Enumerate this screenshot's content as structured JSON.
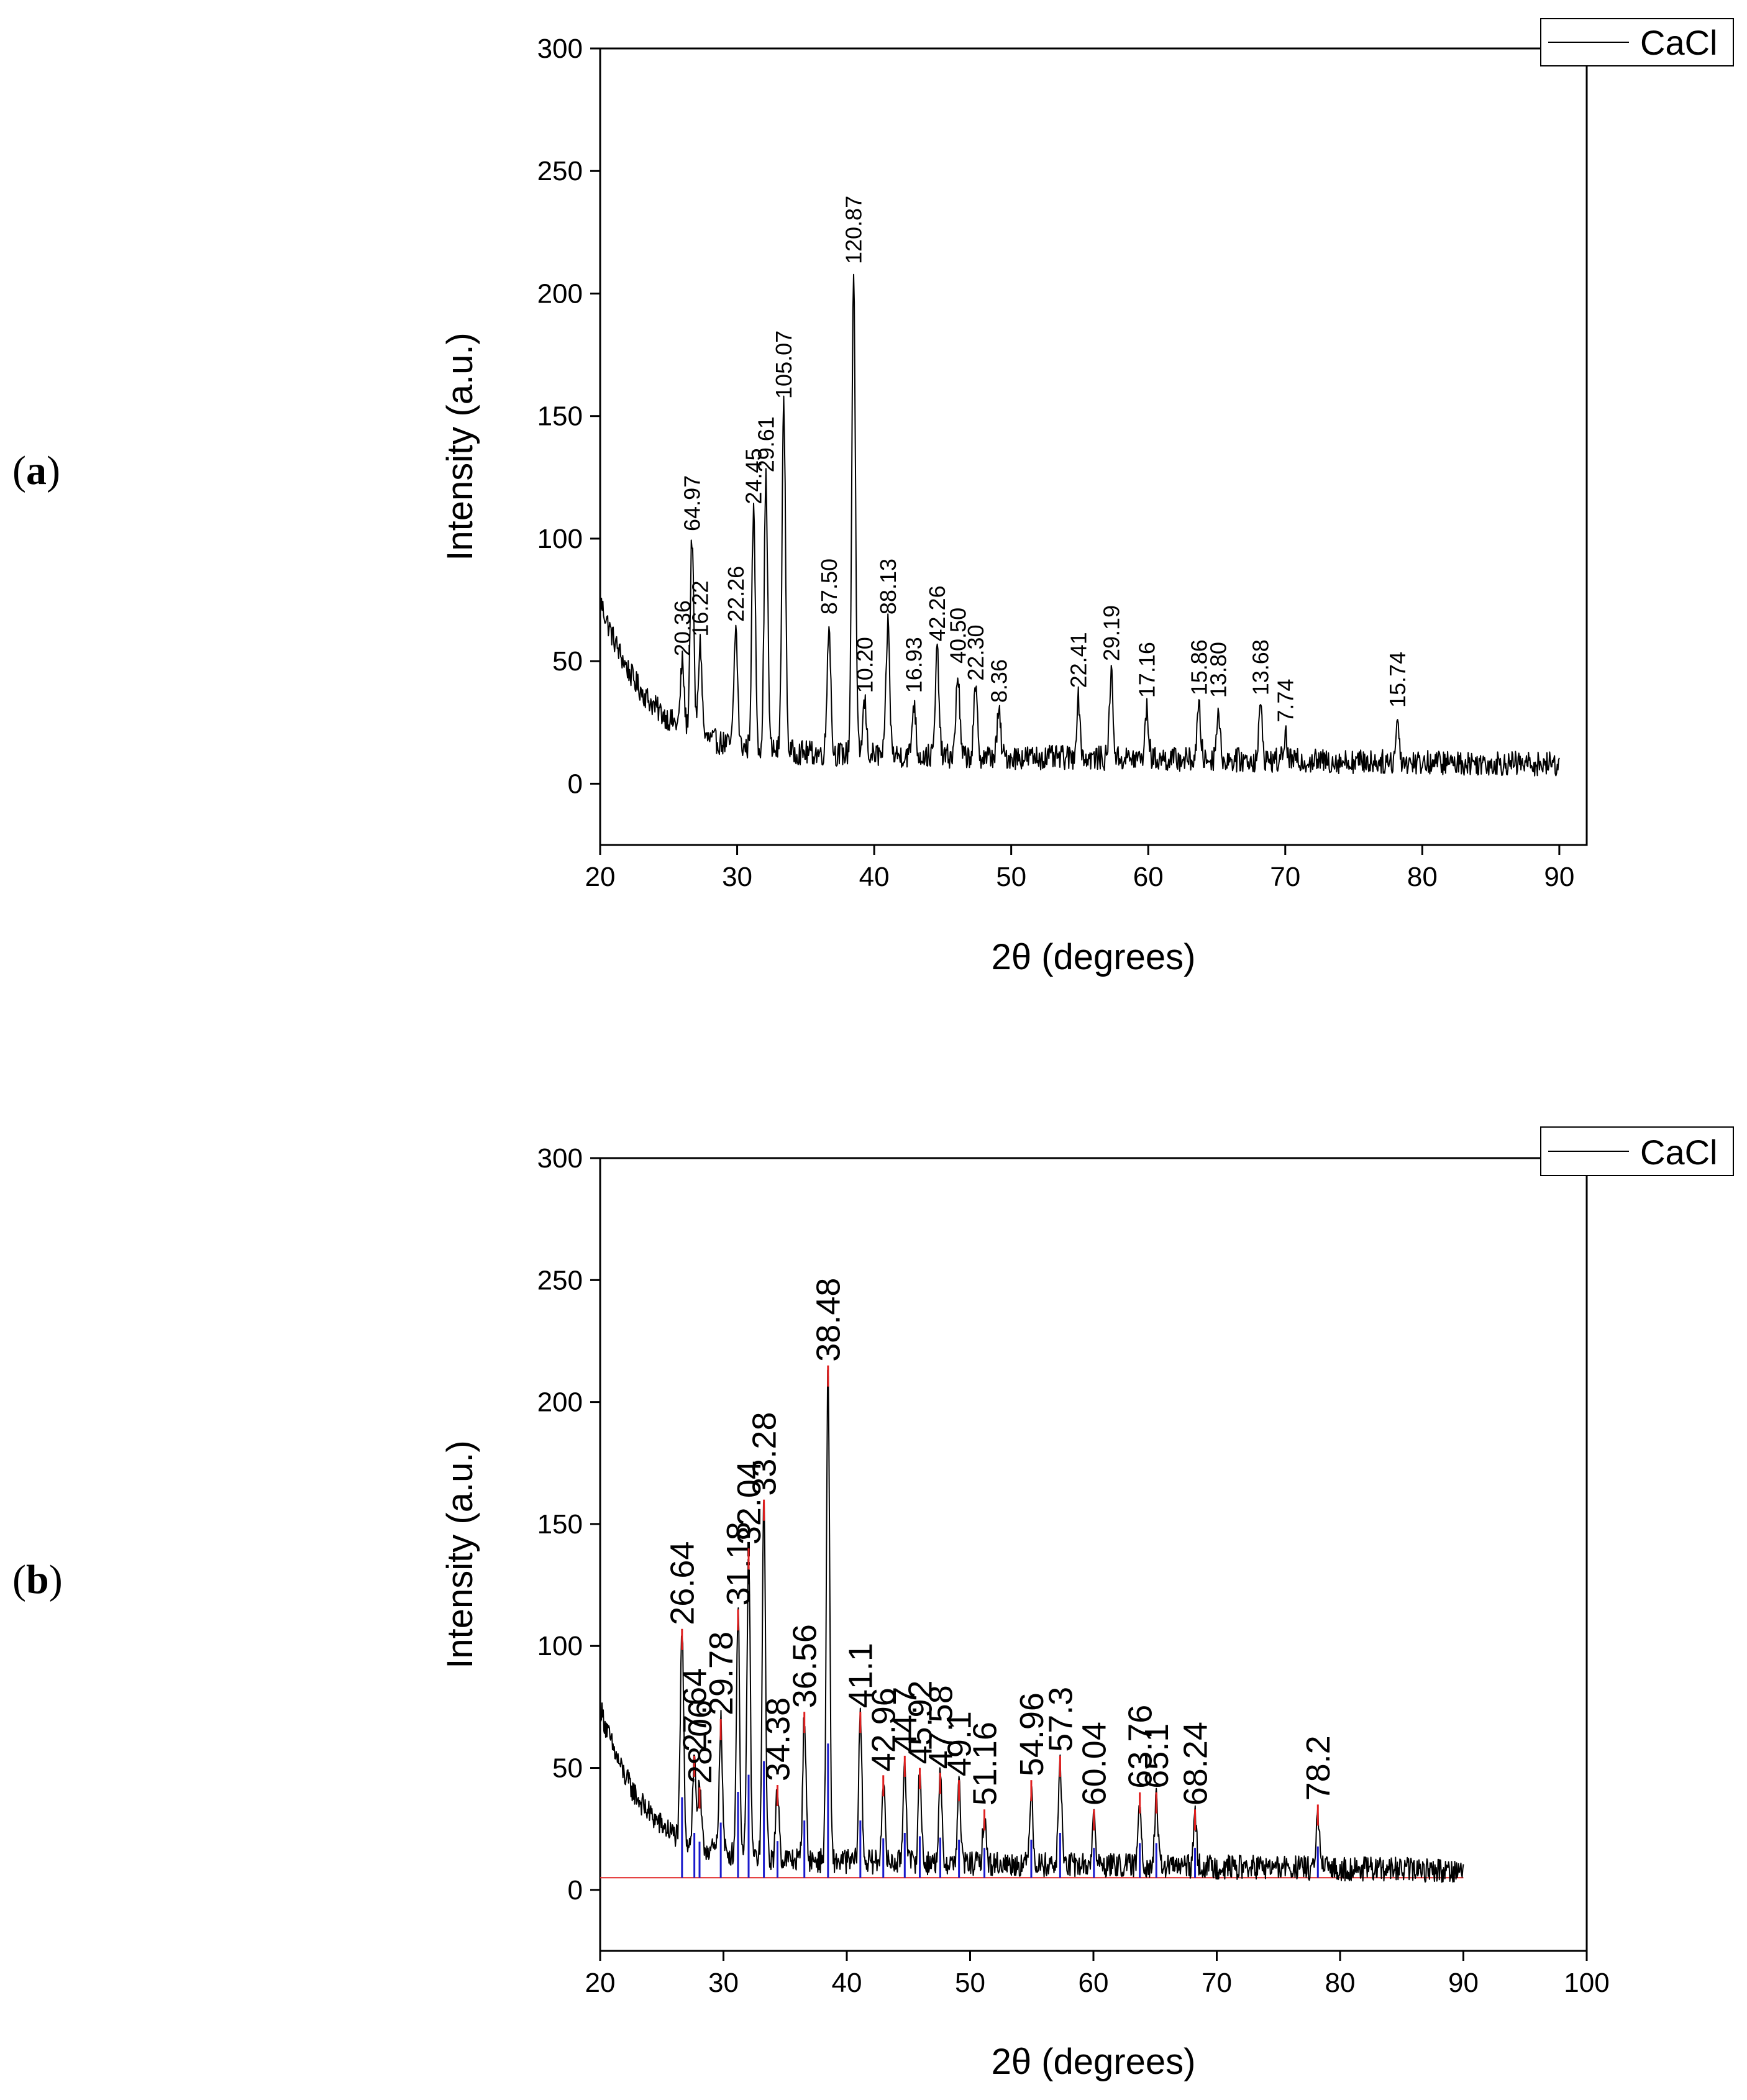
{
  "panels": [
    {
      "open": "(",
      "letter": "a",
      "close": ")"
    },
    {
      "open": "(",
      "letter": "b",
      "close": ")"
    }
  ],
  "colors": {
    "data": "#000000",
    "peak_marker_b": "#e02020",
    "reference_b": "#1a1acc",
    "baseline_b": "#e02020"
  },
  "chart_data": [
    {
      "id": "a",
      "type": "line",
      "title": "",
      "xlabel": "2θ (degrees)",
      "ylabel": "Intensity (a.u.)",
      "xlim": [
        20,
        92
      ],
      "ylim": [
        -25,
        300
      ],
      "xticks": [
        20,
        30,
        40,
        50,
        60,
        70,
        80,
        90
      ],
      "yticks": [
        0,
        50,
        100,
        150,
        200,
        250,
        300
      ],
      "legend": {
        "label": "CaCl",
        "position": "top-right"
      },
      "series": [
        {
          "name": "CaCl",
          "x_range": [
            20,
            90
          ],
          "step": 0.05
        }
      ],
      "background": {
        "start": 75,
        "decay_to": 13,
        "decay_rate": 0.3,
        "end": 8
      },
      "peaks": [
        {
          "x": 26.0,
          "y": 50,
          "label": "20.36"
        },
        {
          "x": 26.7,
          "y": 101,
          "label": "64.97"
        },
        {
          "x": 27.3,
          "y": 58,
          "label": "16.22"
        },
        {
          "x": 29.9,
          "y": 64,
          "label": "22.26"
        },
        {
          "x": 31.2,
          "y": 112,
          "label": "24.45"
        },
        {
          "x": 32.1,
          "y": 125,
          "label": "29.61"
        },
        {
          "x": 33.4,
          "y": 155,
          "label": "105.07"
        },
        {
          "x": 36.7,
          "y": 67,
          "label": "87.50"
        },
        {
          "x": 38.5,
          "y": 210,
          "label": "120.87"
        },
        {
          "x": 39.3,
          "y": 35,
          "label": "10.20"
        },
        {
          "x": 41.0,
          "y": 67,
          "label": "88.13"
        },
        {
          "x": 42.9,
          "y": 35,
          "label": "16.93"
        },
        {
          "x": 44.6,
          "y": 56,
          "label": "42.26"
        },
        {
          "x": 46.1,
          "y": 47,
          "label": "40.50"
        },
        {
          "x": 47.4,
          "y": 40,
          "label": "22.30"
        },
        {
          "x": 49.1,
          "y": 31,
          "label": "8.36"
        },
        {
          "x": 54.9,
          "y": 37,
          "label": "22.41"
        },
        {
          "x": 57.3,
          "y": 48,
          "label": "29.19"
        },
        {
          "x": 59.9,
          "y": 33,
          "label": "17.16"
        },
        {
          "x": 63.7,
          "y": 34,
          "label": "15.86"
        },
        {
          "x": 65.1,
          "y": 33,
          "label": "13.80"
        },
        {
          "x": 68.2,
          "y": 34,
          "label": "13.68"
        },
        {
          "x": 70.0,
          "y": 23,
          "label": "7.74"
        },
        {
          "x": 78.2,
          "y": 29,
          "label": "15.74"
        }
      ]
    },
    {
      "id": "b",
      "type": "line",
      "title": "",
      "xlabel": "2θ (degrees)",
      "ylabel": "Intensity (a.u.)",
      "xlim": [
        20,
        100
      ],
      "ylim": [
        -25,
        300
      ],
      "xticks": [
        20,
        30,
        40,
        50,
        60,
        70,
        80,
        90,
        100
      ],
      "yticks": [
        0,
        50,
        100,
        150,
        200,
        250,
        300
      ],
      "legend": {
        "label": "CaCl",
        "position": "top-right"
      },
      "series": [
        {
          "name": "CaCl",
          "x_range": [
            20,
            90
          ],
          "step": 0.05
        }
      ],
      "baseline_y": 5,
      "background": {
        "start": 75,
        "decay_to": 13,
        "decay_rate": 0.3,
        "end": 8
      },
      "peaks": [
        {
          "x": 26.64,
          "y": 107,
          "label": "26.64"
        },
        {
          "x": 27.64,
          "y": 55,
          "label": "27.64"
        },
        {
          "x": 28.06,
          "y": 42,
          "label": "28.06"
        },
        {
          "x": 29.78,
          "y": 70,
          "label": "29.78"
        },
        {
          "x": 31.18,
          "y": 115,
          "label": "31.18"
        },
        {
          "x": 32.04,
          "y": 140,
          "label": "32.04"
        },
        {
          "x": 33.28,
          "y": 160,
          "label": "33.28"
        },
        {
          "x": 34.38,
          "y": 43,
          "label": "34.38"
        },
        {
          "x": 36.56,
          "y": 73,
          "label": "36.56"
        },
        {
          "x": 38.48,
          "y": 215,
          "label": "38.48"
        },
        {
          "x": 41.1,
          "y": 73,
          "label": "41.1"
        },
        {
          "x": 42.96,
          "y": 47,
          "label": "42.96"
        },
        {
          "x": 44.7,
          "y": 55,
          "label": "44.7"
        },
        {
          "x": 45.92,
          "y": 50,
          "label": "45.92"
        },
        {
          "x": 47.58,
          "y": 48,
          "label": "47.58"
        },
        {
          "x": 49.1,
          "y": 45,
          "label": "49.1"
        },
        {
          "x": 51.16,
          "y": 33,
          "label": "51.16"
        },
        {
          "x": 54.96,
          "y": 45,
          "label": "54.96"
        },
        {
          "x": 57.3,
          "y": 55,
          "label": "57.3"
        },
        {
          "x": 60.04,
          "y": 33,
          "label": "60.04"
        },
        {
          "x": 63.76,
          "y": 40,
          "label": "63.76"
        },
        {
          "x": 65.1,
          "y": 40,
          "label": "65.1"
        },
        {
          "x": 68.24,
          "y": 33,
          "label": "68.24"
        },
        {
          "x": 78.2,
          "y": 35,
          "label": "78.2"
        }
      ]
    }
  ]
}
